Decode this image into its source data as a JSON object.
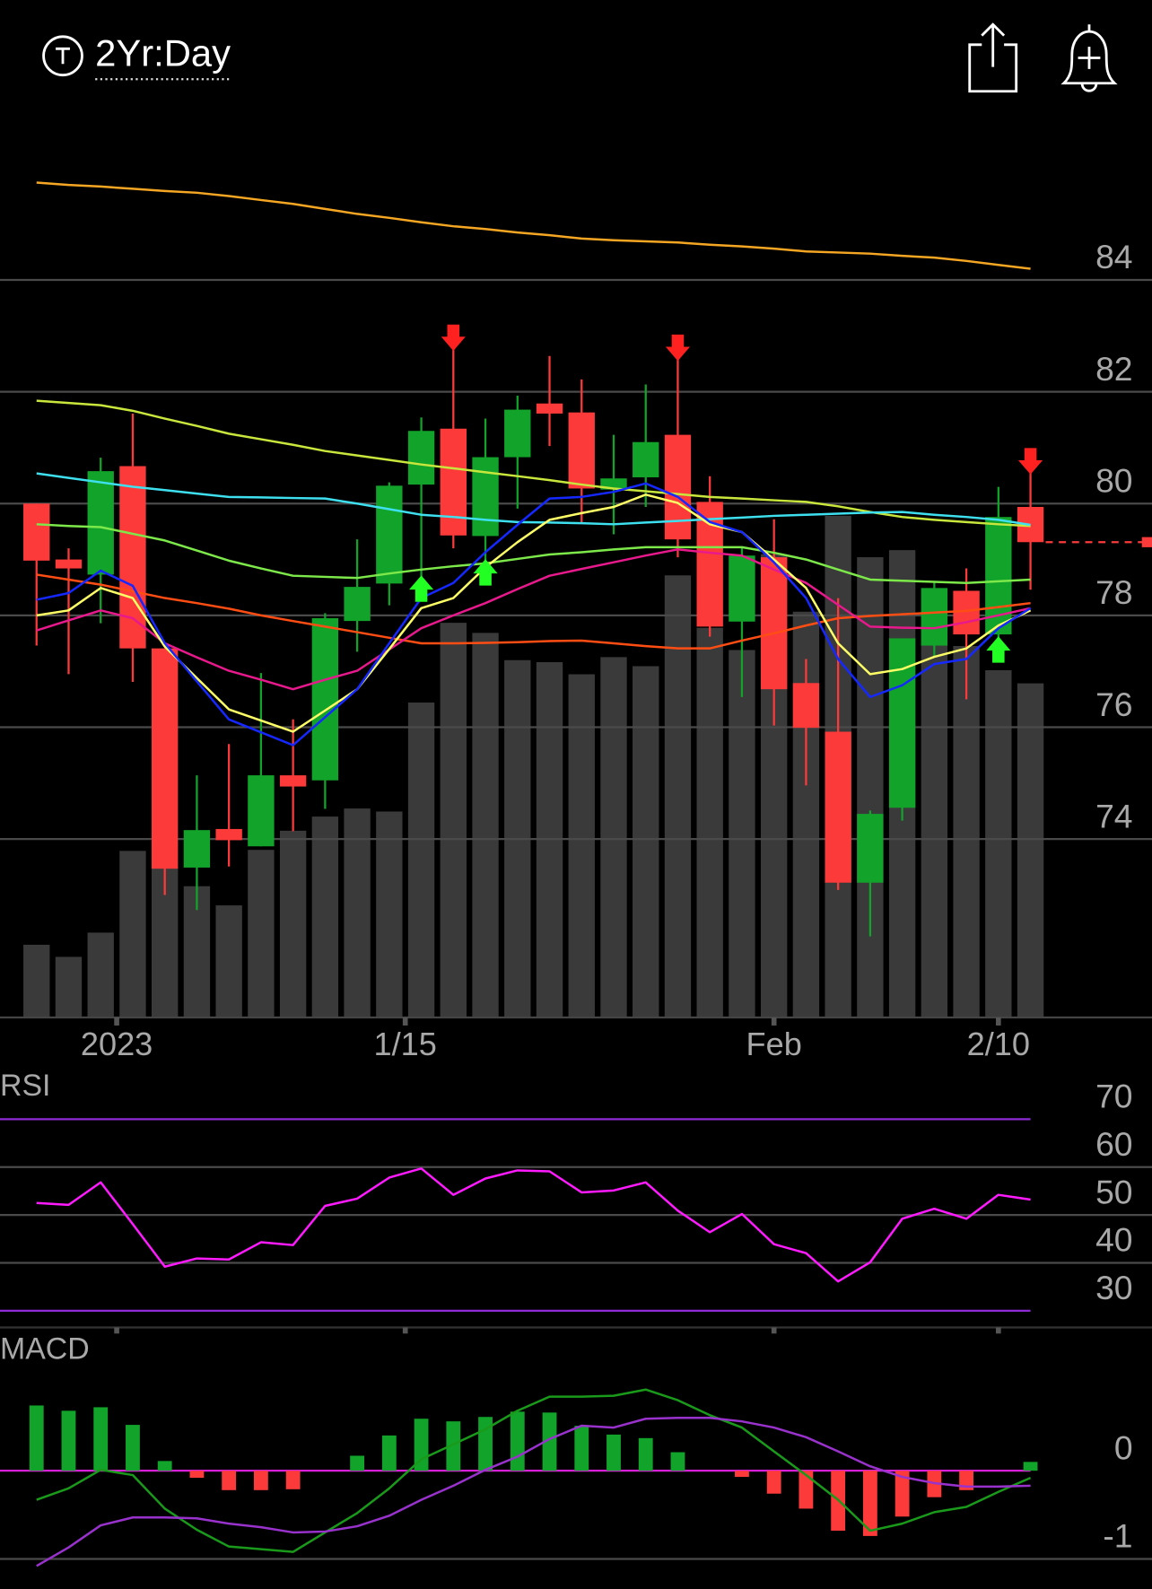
{
  "header": {
    "period": "2Yr:Day"
  },
  "chart_data": [
    {
      "type": "candlestick",
      "xlim": [
        -1.14,
        34.79
      ],
      "xticks": [
        {
          "value": 2.5,
          "label": "2023"
        },
        {
          "value": 11.5,
          "label": "1/15"
        },
        {
          "value": 23,
          "label": "Feb"
        },
        {
          "value": 30,
          "label": "2/10"
        }
      ],
      "ylim": [
        70.81,
        86.83
      ],
      "yticks": [
        74,
        76,
        78,
        80,
        82,
        84
      ],
      "grid": true,
      "up_color": "#12a42a",
      "down_color": "#fc3a3a",
      "open": [
        80.0,
        79.0,
        78.73,
        80.67,
        77.41,
        73.49,
        74.18,
        73.87,
        75.14,
        75.05,
        77.9,
        78.57,
        80.34,
        81.34,
        79.42,
        80.83,
        81.79,
        81.63,
        80.25,
        80.47,
        81.23,
        80.03,
        77.89,
        79.04,
        76.79,
        75.92,
        73.22,
        74.56,
        77.46,
        78.44,
        77.66,
        79.94
      ],
      "high": [
        80.0,
        79.2,
        80.82,
        81.61,
        77.41,
        75.14,
        75.7,
        76.97,
        76.14,
        78.04,
        79.36,
        80.38,
        81.54,
        82.84,
        81.52,
        81.93,
        82.64,
        82.22,
        81.23,
        82.13,
        82.66,
        80.49,
        79.22,
        79.72,
        77.22,
        78.31,
        74.51,
        77.59,
        78.6,
        78.84,
        80.3,
        80.63
      ],
      "low": [
        77.46,
        76.95,
        77.86,
        76.81,
        73.0,
        72.73,
        73.51,
        73.87,
        74.14,
        74.54,
        77.35,
        78.18,
        78.57,
        79.2,
        78.86,
        79.91,
        81.03,
        79.65,
        79.45,
        79.94,
        79.04,
        77.62,
        76.54,
        76.03,
        74.96,
        73.09,
        72.26,
        74.33,
        77.26,
        76.5,
        77.48,
        78.46
      ],
      "close": [
        78.98,
        78.84,
        80.58,
        77.41,
        73.47,
        74.16,
        73.98,
        75.14,
        74.94,
        77.95,
        78.51,
        80.32,
        81.3,
        79.43,
        80.83,
        81.68,
        81.61,
        80.27,
        80.45,
        81.1,
        79.36,
        77.8,
        79.07,
        76.68,
        75.99,
        73.22,
        74.45,
        77.59,
        78.49,
        77.66,
        79.76,
        79.31
      ],
      "volume": {
        "color": "#3a3a3a",
        "values": [
          72,
          60,
          84,
          165,
          149,
          130,
          111,
          166,
          185,
          199,
          207,
          204,
          312,
          391,
          381,
          354,
          352,
          340,
          357,
          348,
          438,
          386,
          364,
          459,
          402,
          497,
          456,
          463,
          370,
          368,
          344,
          331
        ]
      },
      "last_price_line": true,
      "last_price_color": "#fc3a3a",
      "signals": {
        "buy": [
          12,
          14,
          30
        ],
        "sell": [
          13,
          20,
          31
        ],
        "buy_color": "#22ff22",
        "sell_color": "#ff2020"
      },
      "series": [
        {
          "color": "#f5a623",
          "values": [
            85.74,
            85.7,
            85.67,
            85.63,
            85.59,
            85.56,
            85.5,
            85.43,
            85.36,
            85.27,
            85.18,
            85.11,
            85.03,
            84.96,
            84.91,
            84.85,
            84.8,
            84.74,
            84.71,
            84.69,
            84.67,
            84.63,
            84.6,
            84.56,
            84.51,
            84.49,
            84.47,
            84.43,
            84.4,
            84.34,
            84.27,
            84.2
          ]
        },
        {
          "color": "#c8e63c",
          "values": [
            81.84,
            81.8,
            81.76,
            81.66,
            81.52,
            81.39,
            81.25,
            81.15,
            81.05,
            80.94,
            80.86,
            80.78,
            80.7,
            80.63,
            80.56,
            80.49,
            80.42,
            80.34,
            80.27,
            80.22,
            80.17,
            80.12,
            80.09,
            80.06,
            80.03,
            79.95,
            79.85,
            79.76,
            79.71,
            79.67,
            79.63,
            79.6
          ]
        },
        {
          "color": "#3ee0f0",
          "values": [
            80.54,
            80.46,
            80.38,
            80.3,
            80.24,
            80.18,
            80.12,
            80.11,
            80.1,
            80.09,
            80.0,
            79.9,
            79.8,
            79.76,
            79.71,
            79.67,
            79.66,
            79.65,
            79.63,
            79.66,
            79.69,
            79.72,
            79.75,
            79.78,
            79.8,
            79.82,
            79.84,
            79.85,
            79.8,
            79.76,
            79.71,
            79.62
          ]
        },
        {
          "color": "#7de84a",
          "values": [
            79.63,
            79.6,
            79.58,
            79.46,
            79.34,
            79.16,
            78.98,
            78.84,
            78.71,
            78.69,
            78.67,
            78.75,
            78.82,
            78.88,
            78.93,
            79.01,
            79.09,
            79.13,
            79.18,
            79.22,
            79.22,
            79.22,
            79.22,
            79.12,
            79.0,
            78.82,
            78.64,
            78.62,
            78.6,
            78.58,
            78.61,
            78.64
          ]
        },
        {
          "color": "#ff4d14",
          "values": [
            78.73,
            78.64,
            78.55,
            78.43,
            78.31,
            78.22,
            78.12,
            78.0,
            77.9,
            77.8,
            77.7,
            77.6,
            77.5,
            77.5,
            77.51,
            77.52,
            77.54,
            77.55,
            77.5,
            77.45,
            77.41,
            77.41,
            77.55,
            77.68,
            77.82,
            77.95,
            77.99,
            78.02,
            78.05,
            78.08,
            78.15,
            78.22
          ]
        },
        {
          "color": "#e8198c",
          "values": [
            77.73,
            77.91,
            78.09,
            77.95,
            77.5,
            77.25,
            77.01,
            76.85,
            76.68,
            76.85,
            77.01,
            77.39,
            77.77,
            78.0,
            78.22,
            78.47,
            78.71,
            78.83,
            78.95,
            79.07,
            79.18,
            79.12,
            79.07,
            78.82,
            78.58,
            78.19,
            77.8,
            77.78,
            77.77,
            77.88,
            78.0,
            78.13
          ]
        },
        {
          "color": "#ffff66",
          "values": [
            78.0,
            78.09,
            78.49,
            78.31,
            77.44,
            76.88,
            76.32,
            76.12,
            75.92,
            76.3,
            76.68,
            77.4,
            78.13,
            78.31,
            78.86,
            79.31,
            79.71,
            79.83,
            79.94,
            80.16,
            80.01,
            79.63,
            79.49,
            79.0,
            78.49,
            77.5,
            76.95,
            77.04,
            77.26,
            77.41,
            77.82,
            78.09
          ]
        },
        {
          "color": "#1428ff",
          "values": [
            78.28,
            78.4,
            78.8,
            78.53,
            77.5,
            76.82,
            76.14,
            75.91,
            75.68,
            76.18,
            76.68,
            77.5,
            78.31,
            78.58,
            79.13,
            79.62,
            80.09,
            80.12,
            80.21,
            80.36,
            80.12,
            79.67,
            79.49,
            78.95,
            78.31,
            77.22,
            76.54,
            76.75,
            77.13,
            77.22,
            77.77,
            78.13
          ]
        }
      ]
    },
    {
      "type": "line",
      "title": "RSI",
      "ylim": [
        26.5,
        79.4
      ],
      "yticks": [
        70,
        60,
        50,
        40,
        30
      ],
      "grid": true,
      "limit_line_color": "#8e2bd6",
      "series": [
        {
          "color": "#ff1aff",
          "values": [
            52.5,
            52.1,
            56.8,
            48.1,
            39.2,
            40.9,
            40.7,
            44.3,
            43.7,
            51.9,
            53.4,
            57.8,
            59.7,
            54.2,
            57.6,
            59.3,
            59.1,
            54.7,
            55.1,
            56.8,
            50.9,
            46.4,
            50.2,
            43.9,
            42.0,
            36.1,
            40.1,
            49.2,
            51.3,
            49.2,
            54.2,
            53.2
          ]
        }
      ]
    },
    {
      "type": "bar",
      "title": "MACD",
      "ylim": [
        -1.34,
        1.51
      ],
      "yticks": [
        0,
        -1
      ],
      "grid": true,
      "zero_line_color": "#d81fd8",
      "up_color": "#12a42a",
      "down_color": "#fc3a3a",
      "values": [
        0.74,
        0.68,
        0.72,
        0.52,
        0.11,
        -0.08,
        -0.22,
        -0.22,
        -0.21,
        0,
        0.17,
        0.4,
        0.59,
        0.56,
        0.61,
        0.67,
        0.66,
        0.51,
        0.41,
        0.37,
        0.21,
        0,
        -0.07,
        -0.26,
        -0.43,
        -0.68,
        -0.74,
        -0.52,
        -0.3,
        -0.22,
        0,
        0.1
      ],
      "series": [
        {
          "color": "#1a9a1a",
          "values": [
            -0.33,
            -0.2,
            0.01,
            -0.05,
            -0.43,
            -0.67,
            -0.86,
            -0.89,
            -0.92,
            -0.7,
            -0.48,
            -0.2,
            0.13,
            0.3,
            0.47,
            0.68,
            0.84,
            0.84,
            0.85,
            0.92,
            0.8,
            0.63,
            0.49,
            0.22,
            -0.05,
            -0.33,
            -0.68,
            -0.6,
            -0.47,
            -0.41,
            -0.24,
            -0.08
          ]
        },
        {
          "color": "#9932cc",
          "values": [
            -1.08,
            -0.87,
            -0.62,
            -0.53,
            -0.53,
            -0.54,
            -0.6,
            -0.64,
            -0.7,
            -0.69,
            -0.63,
            -0.51,
            -0.33,
            -0.17,
            0.01,
            0.16,
            0.36,
            0.51,
            0.49,
            0.59,
            0.6,
            0.6,
            0.56,
            0.49,
            0.38,
            0.22,
            0.05,
            -0.07,
            -0.14,
            -0.18,
            -0.18,
            -0.17
          ]
        }
      ]
    }
  ]
}
